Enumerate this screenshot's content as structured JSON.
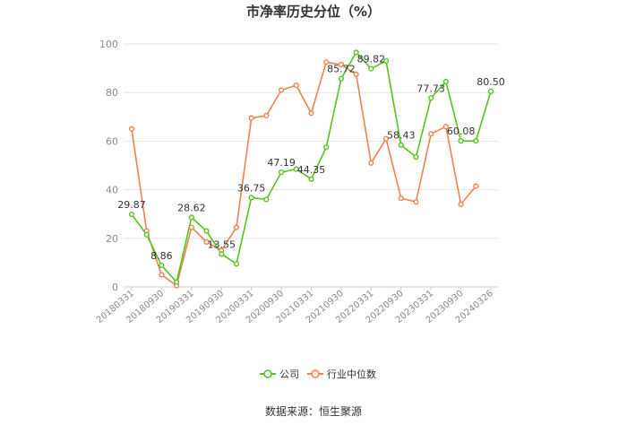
{
  "chart_data": {
    "type": "line",
    "title": "市净率历史分位（%）",
    "source": "数据来源：恒生聚源",
    "ylim": [
      0,
      100
    ],
    "yticks": [
      0,
      20,
      40,
      60,
      80,
      100
    ],
    "grid": true,
    "legend_position": "bottom",
    "x_tick_labels": [
      "20180331",
      "20180930",
      "20190331",
      "20190930",
      "20200331",
      "20200930",
      "20210331",
      "20210930",
      "20220331",
      "20220930",
      "20230331",
      "20230930",
      "20240326"
    ],
    "series": [
      {
        "name": "公司",
        "color": "#52c41a",
        "values": [
          29.87,
          21.5,
          8.86,
          2.0,
          28.62,
          23.0,
          13.55,
          9.5,
          36.75,
          36.0,
          47.19,
          48.5,
          44.35,
          57.5,
          85.72,
          96.5,
          89.82,
          93.0,
          58.43,
          53.5,
          77.73,
          84.5,
          60.08,
          60.08,
          80.5
        ]
      },
      {
        "name": "行业中位数",
        "color": "#f0804f",
        "values": [
          65.0,
          23.0,
          5.0,
          0.5,
          24.5,
          18.5,
          15.0,
          24.5,
          69.5,
          70.5,
          81.0,
          83.0,
          71.5,
          92.5,
          91.5,
          87.5,
          51.0,
          61.0,
          36.5,
          35.0,
          63.0,
          66.0,
          34.0,
          41.5,
          null
        ]
      }
    ],
    "data_labels": [
      {
        "series": 0,
        "index": 0,
        "text": "29.87"
      },
      {
        "series": 0,
        "index": 2,
        "text": "8.86"
      },
      {
        "series": 0,
        "index": 4,
        "text": "28.62"
      },
      {
        "series": 0,
        "index": 6,
        "text": "13.55"
      },
      {
        "series": 0,
        "index": 8,
        "text": "36.75"
      },
      {
        "series": 0,
        "index": 10,
        "text": "47.19"
      },
      {
        "series": 0,
        "index": 12,
        "text": "44.35"
      },
      {
        "series": 0,
        "index": 14,
        "text": "85.72"
      },
      {
        "series": 0,
        "index": 16,
        "text": "89.82"
      },
      {
        "series": 0,
        "index": 18,
        "text": "58.43"
      },
      {
        "series": 0,
        "index": 20,
        "text": "77.73"
      },
      {
        "series": 0,
        "index": 22,
        "text": "60.08"
      },
      {
        "series": 0,
        "index": 24,
        "text": "80.50"
      }
    ]
  }
}
